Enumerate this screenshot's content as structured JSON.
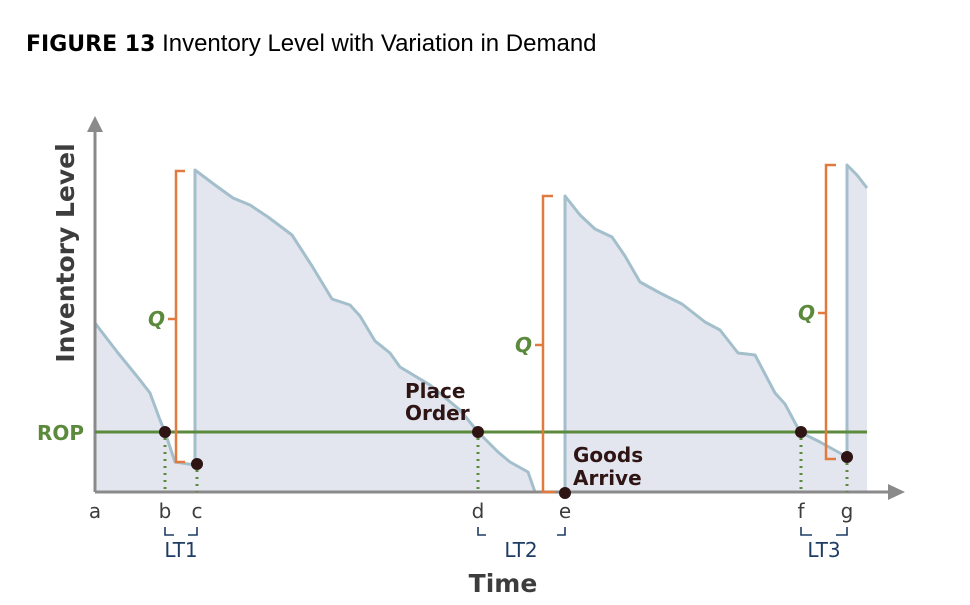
{
  "figure": {
    "number": "FIGURE 13",
    "caption": "Inventory Level with Variation in Demand"
  },
  "axes": {
    "y_label": "Inventory Level",
    "x_label": "Time"
  },
  "rop_label": "ROP",
  "q_label": "Q",
  "annotations": {
    "place_order_line1": "Place",
    "place_order_line2": "Order",
    "goods_arrive_line1": "Goods",
    "goods_arrive_line2": "Arrive"
  },
  "time_points": [
    "a",
    "b",
    "c",
    "d",
    "e",
    "f",
    "g"
  ],
  "lead_times": [
    "LT1",
    "LT2",
    "LT3"
  ],
  "colors": {
    "fill": "#e3e6ee",
    "line": "#a4bfcc",
    "rop": "#5b8a3c",
    "q_bracket": "#e07a3f",
    "marker": "#2f1414",
    "lead_time": "#1f3d63",
    "axis": "#8a8a8a"
  }
}
